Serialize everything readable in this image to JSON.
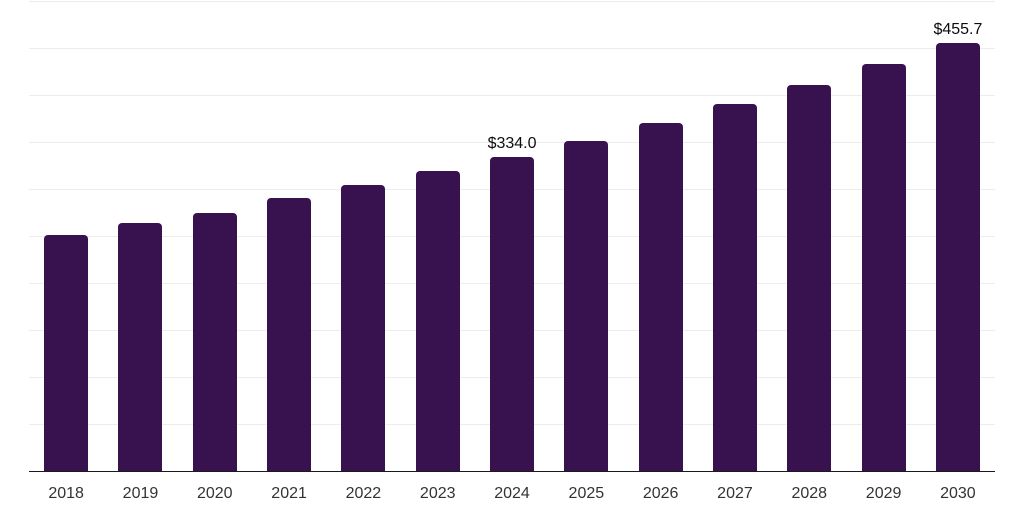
{
  "chart_data": {
    "type": "bar",
    "title": "",
    "xlabel": "",
    "ylabel": "",
    "categories": [
      "2018",
      "2019",
      "2020",
      "2021",
      "2022",
      "2023",
      "2024",
      "2025",
      "2026",
      "2027",
      "2028",
      "2029",
      "2030"
    ],
    "values": [
      251,
      264,
      275,
      290,
      304,
      319,
      334.0,
      351,
      370,
      390,
      411,
      433,
      455.7
    ],
    "point_labels": [
      null,
      null,
      null,
      null,
      null,
      null,
      "$334.0",
      null,
      null,
      null,
      null,
      null,
      "$455.7"
    ],
    "ylim": [
      0,
      500
    ],
    "grid_step": 50,
    "grid": true,
    "y_tick_labels_visible": false,
    "legend": false,
    "bar_color": "#38124f",
    "gridline_color": "#ededed",
    "axis_line_color": "#1a1a1a",
    "tick_label_color": "#333333",
    "value_label_color": "#0d0d0d"
  }
}
